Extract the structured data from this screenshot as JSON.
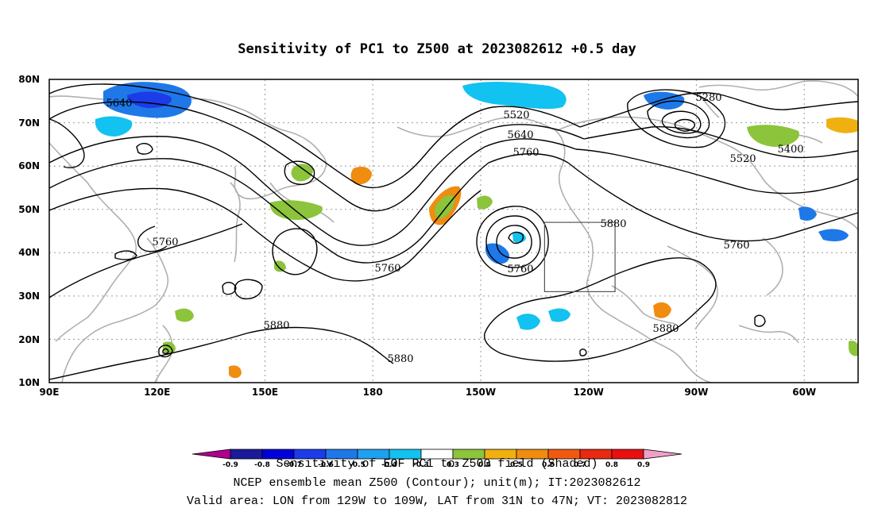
{
  "title": "Sensitivity of PC1 to Z500 at 2023082612 +0.5 day",
  "axes": {
    "y_ticks": [
      "80N",
      "70N",
      "60N",
      "50N",
      "40N",
      "30N",
      "20N",
      "10N"
    ],
    "x_ticks": [
      "90E",
      "120E",
      "150E",
      "180",
      "150W",
      "120W",
      "90W",
      "60W"
    ],
    "lat_range": [
      10,
      80
    ],
    "lon_range": [
      "90E",
      "45W"
    ]
  },
  "contour_labels": [
    "5640",
    "5520",
    "5640",
    "5760",
    "5280",
    "5400",
    "5520",
    "5760",
    "5760",
    "5880",
    "5760",
    "5760",
    "5880",
    "5880",
    "5880"
  ],
  "colorbar": {
    "ticks": [
      "-0.9",
      "-0.8",
      "-0.7",
      "-0.6",
      "-0.5",
      "-0.4",
      "-0.3",
      "0.3",
      "0.4",
      "0.5",
      "0.6",
      "0.7",
      "0.8",
      "0.9"
    ],
    "colors": [
      "#b0008f",
      "#1a1a9a",
      "#0000d8",
      "#1c3ce8",
      "#1e78e8",
      "#1ea0f0",
      "#12c2f0",
      "#ffffff",
      "#8cc43c",
      "#f0b010",
      "#f08c10",
      "#f05a10",
      "#e82a10",
      "#e81010",
      "#f0a0c8"
    ]
  },
  "captions": {
    "line1": "Sensitivity of EOF PC1 to Z500 field (Shaded)",
    "line1_overlay": "-0.9 -0.8 -0.7 -0.6 -0.5 -0.4 -0.3  0.3  0.4  0.5  0.6  0.7  0.8  0.9",
    "line2": "NCEP ensemble mean Z500 (Contour); unit(m); IT:2023082612",
    "line3": "Valid area: LON from 129W to 109W, LAT from 31N to 47N; VT: 2023082812"
  },
  "valid_area": {
    "lon_from": "129W",
    "lon_to": "109W",
    "lat_from": "31N",
    "lat_to": "47N"
  }
}
